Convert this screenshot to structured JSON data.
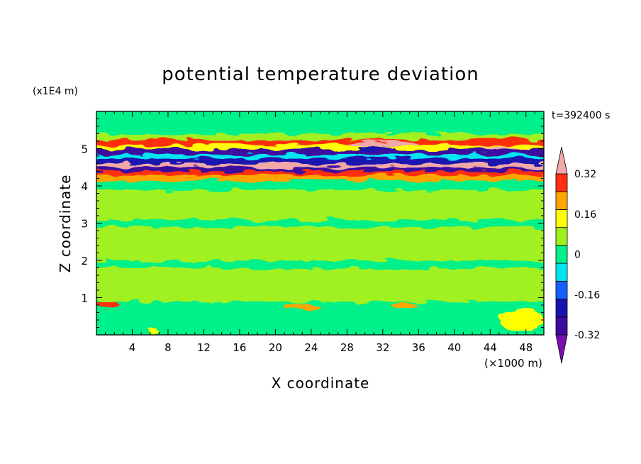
{
  "chart_data": {
    "type": "heatmap",
    "title": "potential temperature deviation",
    "xlabel": "X coordinate",
    "ylabel": "Z coordinate",
    "x_unit": "(×1000 m)",
    "y_unit": "(x1E4 m)",
    "time_label": "t=392400 s",
    "xlim": [
      0,
      50
    ],
    "ylim": [
      0,
      6
    ],
    "x_ticks": [
      4,
      8,
      12,
      16,
      20,
      24,
      28,
      32,
      36,
      40,
      44,
      48
    ],
    "y_ticks": [
      1,
      2,
      3,
      4,
      5
    ],
    "colorbar": {
      "levels": [
        -0.4,
        -0.32,
        -0.24,
        -0.16,
        -0.08,
        0,
        0.08,
        0.16,
        0.24,
        0.32,
        0.4
      ],
      "labels": [
        "0.32",
        "0.16",
        "0",
        "-0.16",
        "-0.32"
      ],
      "label_values": [
        0.32,
        0.16,
        0,
        -0.16,
        -0.32
      ],
      "colors": [
        "#7a0fb0",
        "#3d0aa0",
        "#1a12b0",
        "#1460ff",
        "#00e5f0",
        "#00f08a",
        "#a0f020",
        "#ffff00",
        "#ffa500",
        "#ff2f10",
        "#f0a8a8"
      ],
      "extend": "both"
    },
    "background_color": "#00f08a",
    "bands": [
      {
        "y": [
          0.0,
          0.9
        ],
        "color": "#00f08a"
      },
      {
        "y": [
          0.9,
          1.0
        ],
        "color": "#a0f020"
      },
      {
        "y": [
          1.0,
          1.8
        ],
        "color": "#a0f020"
      },
      {
        "y": [
          1.8,
          2.0
        ],
        "color": "#00f08a"
      },
      {
        "y": [
          2.0,
          2.9
        ],
        "color": "#a0f020"
      },
      {
        "y": [
          2.9,
          3.1
        ],
        "color": "#00f08a"
      },
      {
        "y": [
          3.1,
          3.9
        ],
        "color": "#a0f020"
      },
      {
        "y": [
          3.9,
          4.15
        ],
        "color": "#00f08a"
      },
      {
        "y": [
          4.15,
          4.3
        ],
        "color": "#ffa500"
      },
      {
        "y": [
          4.3,
          4.4
        ],
        "color": "#ff2f10"
      },
      {
        "y": [
          4.4,
          4.5
        ],
        "color": "#3d0aa0"
      },
      {
        "y": [
          4.5,
          4.6
        ],
        "color": "#f0a8a8"
      },
      {
        "y": [
          4.6,
          4.75
        ],
        "color": "#1a12b0"
      },
      {
        "y": [
          4.75,
          4.85
        ],
        "color": "#00e5f0"
      },
      {
        "y": [
          4.85,
          5.0
        ],
        "color": "#3d0aa0"
      },
      {
        "y": [
          5.0,
          5.1
        ],
        "color": "#ffff00"
      },
      {
        "y": [
          5.1,
          5.25
        ],
        "color": "#ff2f10"
      },
      {
        "y": [
          5.25,
          5.4
        ],
        "color": "#a0f020"
      },
      {
        "y": [
          5.4,
          6.0
        ],
        "color": "#00f08a"
      }
    ],
    "features": [
      {
        "x": [
          0,
          2.5
        ],
        "y": [
          0.75,
          0.9
        ],
        "color": "#ff2f10"
      },
      {
        "x": [
          21,
          25
        ],
        "y": [
          0.65,
          0.85
        ],
        "color": "#ffa500"
      },
      {
        "x": [
          33,
          36
        ],
        "y": [
          0.7,
          0.85
        ],
        "color": "#ffa500"
      },
      {
        "x": [
          45,
          50
        ],
        "y": [
          0.1,
          0.7
        ],
        "color": "#ffff00"
      },
      {
        "x": [
          6,
          7
        ],
        "y": [
          0.0,
          0.15
        ],
        "color": "#ffff00"
      },
      {
        "x": [
          28,
          36
        ],
        "y": [
          5.05,
          5.2
        ],
        "color": "#f0a8a8"
      },
      {
        "x": [
          43,
          47
        ],
        "y": [
          4.95,
          5.05
        ],
        "color": "#f0a8a8"
      },
      {
        "x": [
          29,
          33
        ],
        "y": [
          4.95,
          5.05
        ],
        "color": "#1a12b0"
      },
      {
        "x": [
          0,
          4
        ],
        "y": [
          4.5,
          4.6
        ],
        "color": "#f0a8a8"
      }
    ]
  }
}
